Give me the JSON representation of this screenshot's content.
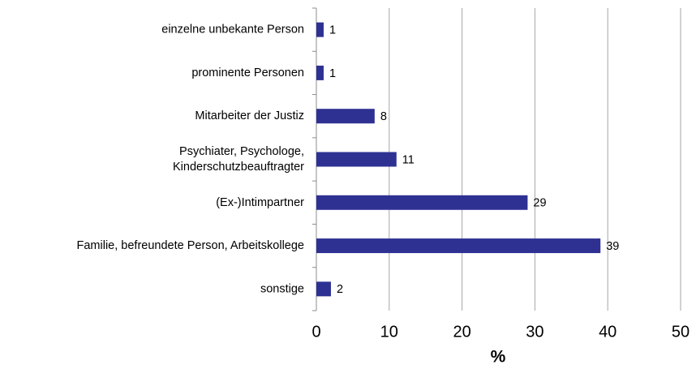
{
  "chart_data": {
    "type": "hbar",
    "categories": [
      "einzelne unbekante Person",
      "prominente Personen",
      "Mitarbeiter der Justiz",
      "Psychiater, Psychologe,\nKinderschutzbeauftragter",
      "(Ex-)Intimpartner",
      "Familie, befreundete Person, Arbeitskollege",
      "sonstige"
    ],
    "values": [
      1,
      1,
      8,
      11,
      29,
      39,
      2
    ],
    "color": "#2e3192",
    "xlabel": "%",
    "xlim": [
      0,
      50
    ],
    "xticks": [
      0,
      10,
      20,
      30,
      40,
      50
    ],
    "grid": true
  }
}
